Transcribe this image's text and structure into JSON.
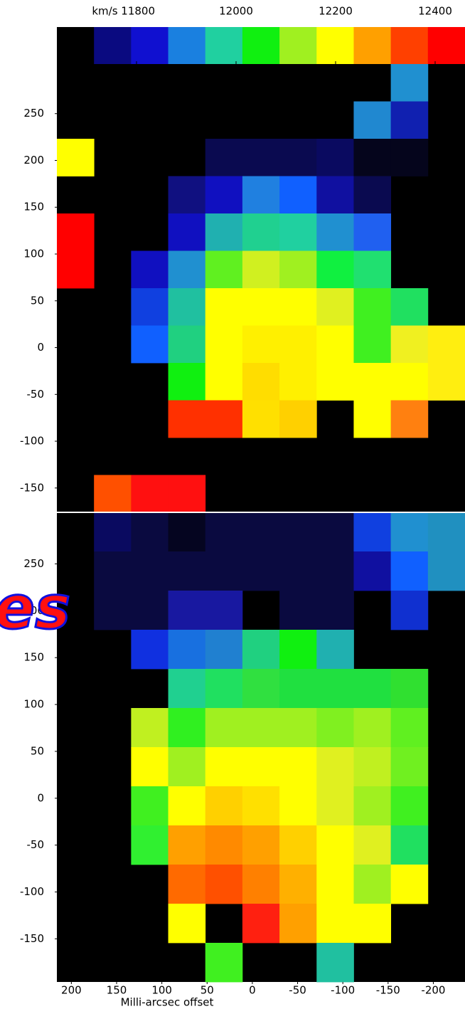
{
  "chart_data": [
    {
      "type": "colorbar",
      "colors": [
        "#000000",
        "#0a0a80",
        "#1010d0",
        "#1a80e0",
        "#20d0a0",
        "#10f010",
        "#a0f020",
        "#ffff00",
        "#ffa000",
        "#ff4000",
        "#ff0000"
      ],
      "xlim": [
        11640,
        12460
      ],
      "xticks": [
        {
          "value": 11800,
          "label": "km/s 11800"
        },
        12000,
        12200,
        12400
      ]
    },
    {
      "type": "heatmap",
      "cells": [
        [
          null,
          null,
          null,
          null,
          null,
          null,
          null,
          null,
          null,
          "#2090d0",
          null
        ],
        [
          null,
          null,
          null,
          null,
          null,
          null,
          null,
          null,
          "#2088d0",
          "#1020b0",
          null
        ],
        [
          "#ffff00",
          null,
          null,
          null,
          "#0a0a50",
          "#0a0a50",
          "#0a0a50",
          "#0a0a60",
          "#05051c",
          "#05051c",
          null
        ],
        [
          null,
          null,
          null,
          "#101080",
          "#1010c0",
          "#2080e0",
          "#1060ff",
          "#1010a0",
          "#0a0a50",
          null,
          null
        ],
        [
          "#ff0000",
          null,
          null,
          "#1010c0",
          "#20b0b0",
          "#20d090",
          "#20d0a0",
          "#2090d0",
          "#2060f0",
          null,
          null
        ],
        [
          "#ff0000",
          null,
          "#1010c0",
          "#2090d0",
          "#60f020",
          "#d0f020",
          "#a0f020",
          "#10f040",
          "#20e070",
          null,
          null
        ],
        [
          null,
          null,
          "#1040e0",
          "#20c0a0",
          "#ffff00",
          "#ffff00",
          "#ffff00",
          "#e0f020",
          "#40f020",
          "#20e060",
          null
        ],
        [
          null,
          null,
          "#1060ff",
          "#20d080",
          "#ffff00",
          "#fff000",
          "#fff000",
          "#ffff00",
          "#40f020",
          "#f0f020",
          "#ffee10"
        ],
        [
          null,
          null,
          null,
          "#10f010",
          "#ffff00",
          "#ffdd00",
          "#fff000",
          "#ffff00",
          "#ffff00",
          "#ffff00",
          "#ffee10"
        ],
        [
          null,
          null,
          null,
          "#ff3000",
          "#ff3000",
          "#ffe000",
          "#ffd000",
          null,
          "#ffff00",
          "#ff8010",
          null
        ],
        [
          null,
          null,
          null,
          null,
          null,
          null,
          null,
          null,
          null,
          null,
          null
        ],
        [
          null,
          "#ff5000",
          "#ff1010",
          "#ff1010",
          null,
          null,
          null,
          null,
          null,
          null,
          null
        ]
      ],
      "ylim": [
        -176,
        303
      ],
      "yticks": [
        250,
        200,
        150,
        100,
        50,
        0,
        -50,
        -100,
        -150
      ]
    },
    {
      "type": "heatmap",
      "cells": [
        [
          null,
          "#0a0a60",
          "#0a0a40",
          "#050520",
          "#0a0a40",
          "#0a0a40",
          "#0a0a40",
          "#0a0a40",
          "#1040e0",
          "#2090d0",
          "#2090c0"
        ],
        [
          null,
          "#0a0a40",
          "#0a0a40",
          "#0a0a40",
          "#0a0a40",
          "#0a0a40",
          "#0a0a40",
          "#0a0a40",
          "#1010a0",
          "#1060ff",
          "#2090c0"
        ],
        [
          null,
          "#0a0a40",
          "#0a0a40",
          "#1818a0",
          "#1818a0",
          null,
          "#0a0a40",
          "#0a0a40",
          null,
          "#1030d0",
          null
        ],
        [
          null,
          null,
          "#1030e0",
          "#1870e0",
          "#2080d0",
          "#20d080",
          "#10f010",
          "#20b0b0",
          null,
          null,
          null
        ],
        [
          null,
          null,
          null,
          "#20d090",
          "#20e060",
          "#30e040",
          "#20e040",
          "#20e040",
          "#20e040",
          "#30e030",
          null
        ],
        [
          null,
          null,
          "#c0f020",
          "#30f020",
          "#a0f020",
          "#a0f020",
          "#a0f020",
          "#80f020",
          "#a0f020",
          "#60f020",
          null
        ],
        [
          null,
          null,
          "#ffff00",
          "#a0f020",
          "#ffff00",
          "#ffff00",
          "#ffff00",
          "#e0f020",
          "#c0f020",
          "#70f020",
          null
        ],
        [
          null,
          null,
          "#40f020",
          "#ffff00",
          "#ffd000",
          "#ffe000",
          "#ffff00",
          "#e0f020",
          "#a0f020",
          "#40f020",
          null
        ],
        [
          null,
          null,
          "#30f030",
          "#ffa000",
          "#ff8a00",
          "#ffa000",
          "#ffd000",
          "#ffff00",
          "#e0f020",
          "#20e060",
          null
        ],
        [
          null,
          null,
          null,
          "#ff6a00",
          "#ff5000",
          "#ff8000",
          "#ffb000",
          "#ffff00",
          "#a0f020",
          "#ffff00",
          null
        ],
        [
          null,
          null,
          null,
          "#ffff00",
          null,
          "#ff2010",
          "#ffa000",
          "#ffff00",
          "#ffff00",
          null,
          null
        ],
        [
          null,
          null,
          null,
          null,
          "#40f020",
          null,
          null,
          "#20c0a0",
          null,
          null,
          null
        ]
      ],
      "ylim": [
        -196,
        305
      ],
      "yticks": [
        250,
        200,
        150,
        100,
        50,
        0,
        -50,
        -100,
        -150
      ],
      "xlim": [
        216,
        -235
      ],
      "xticks": [
        200,
        150,
        100,
        50,
        0,
        -50,
        -100,
        -150,
        -200
      ],
      "xlabel": "Milli-arcsec offset"
    }
  ],
  "overlay_text": "es"
}
